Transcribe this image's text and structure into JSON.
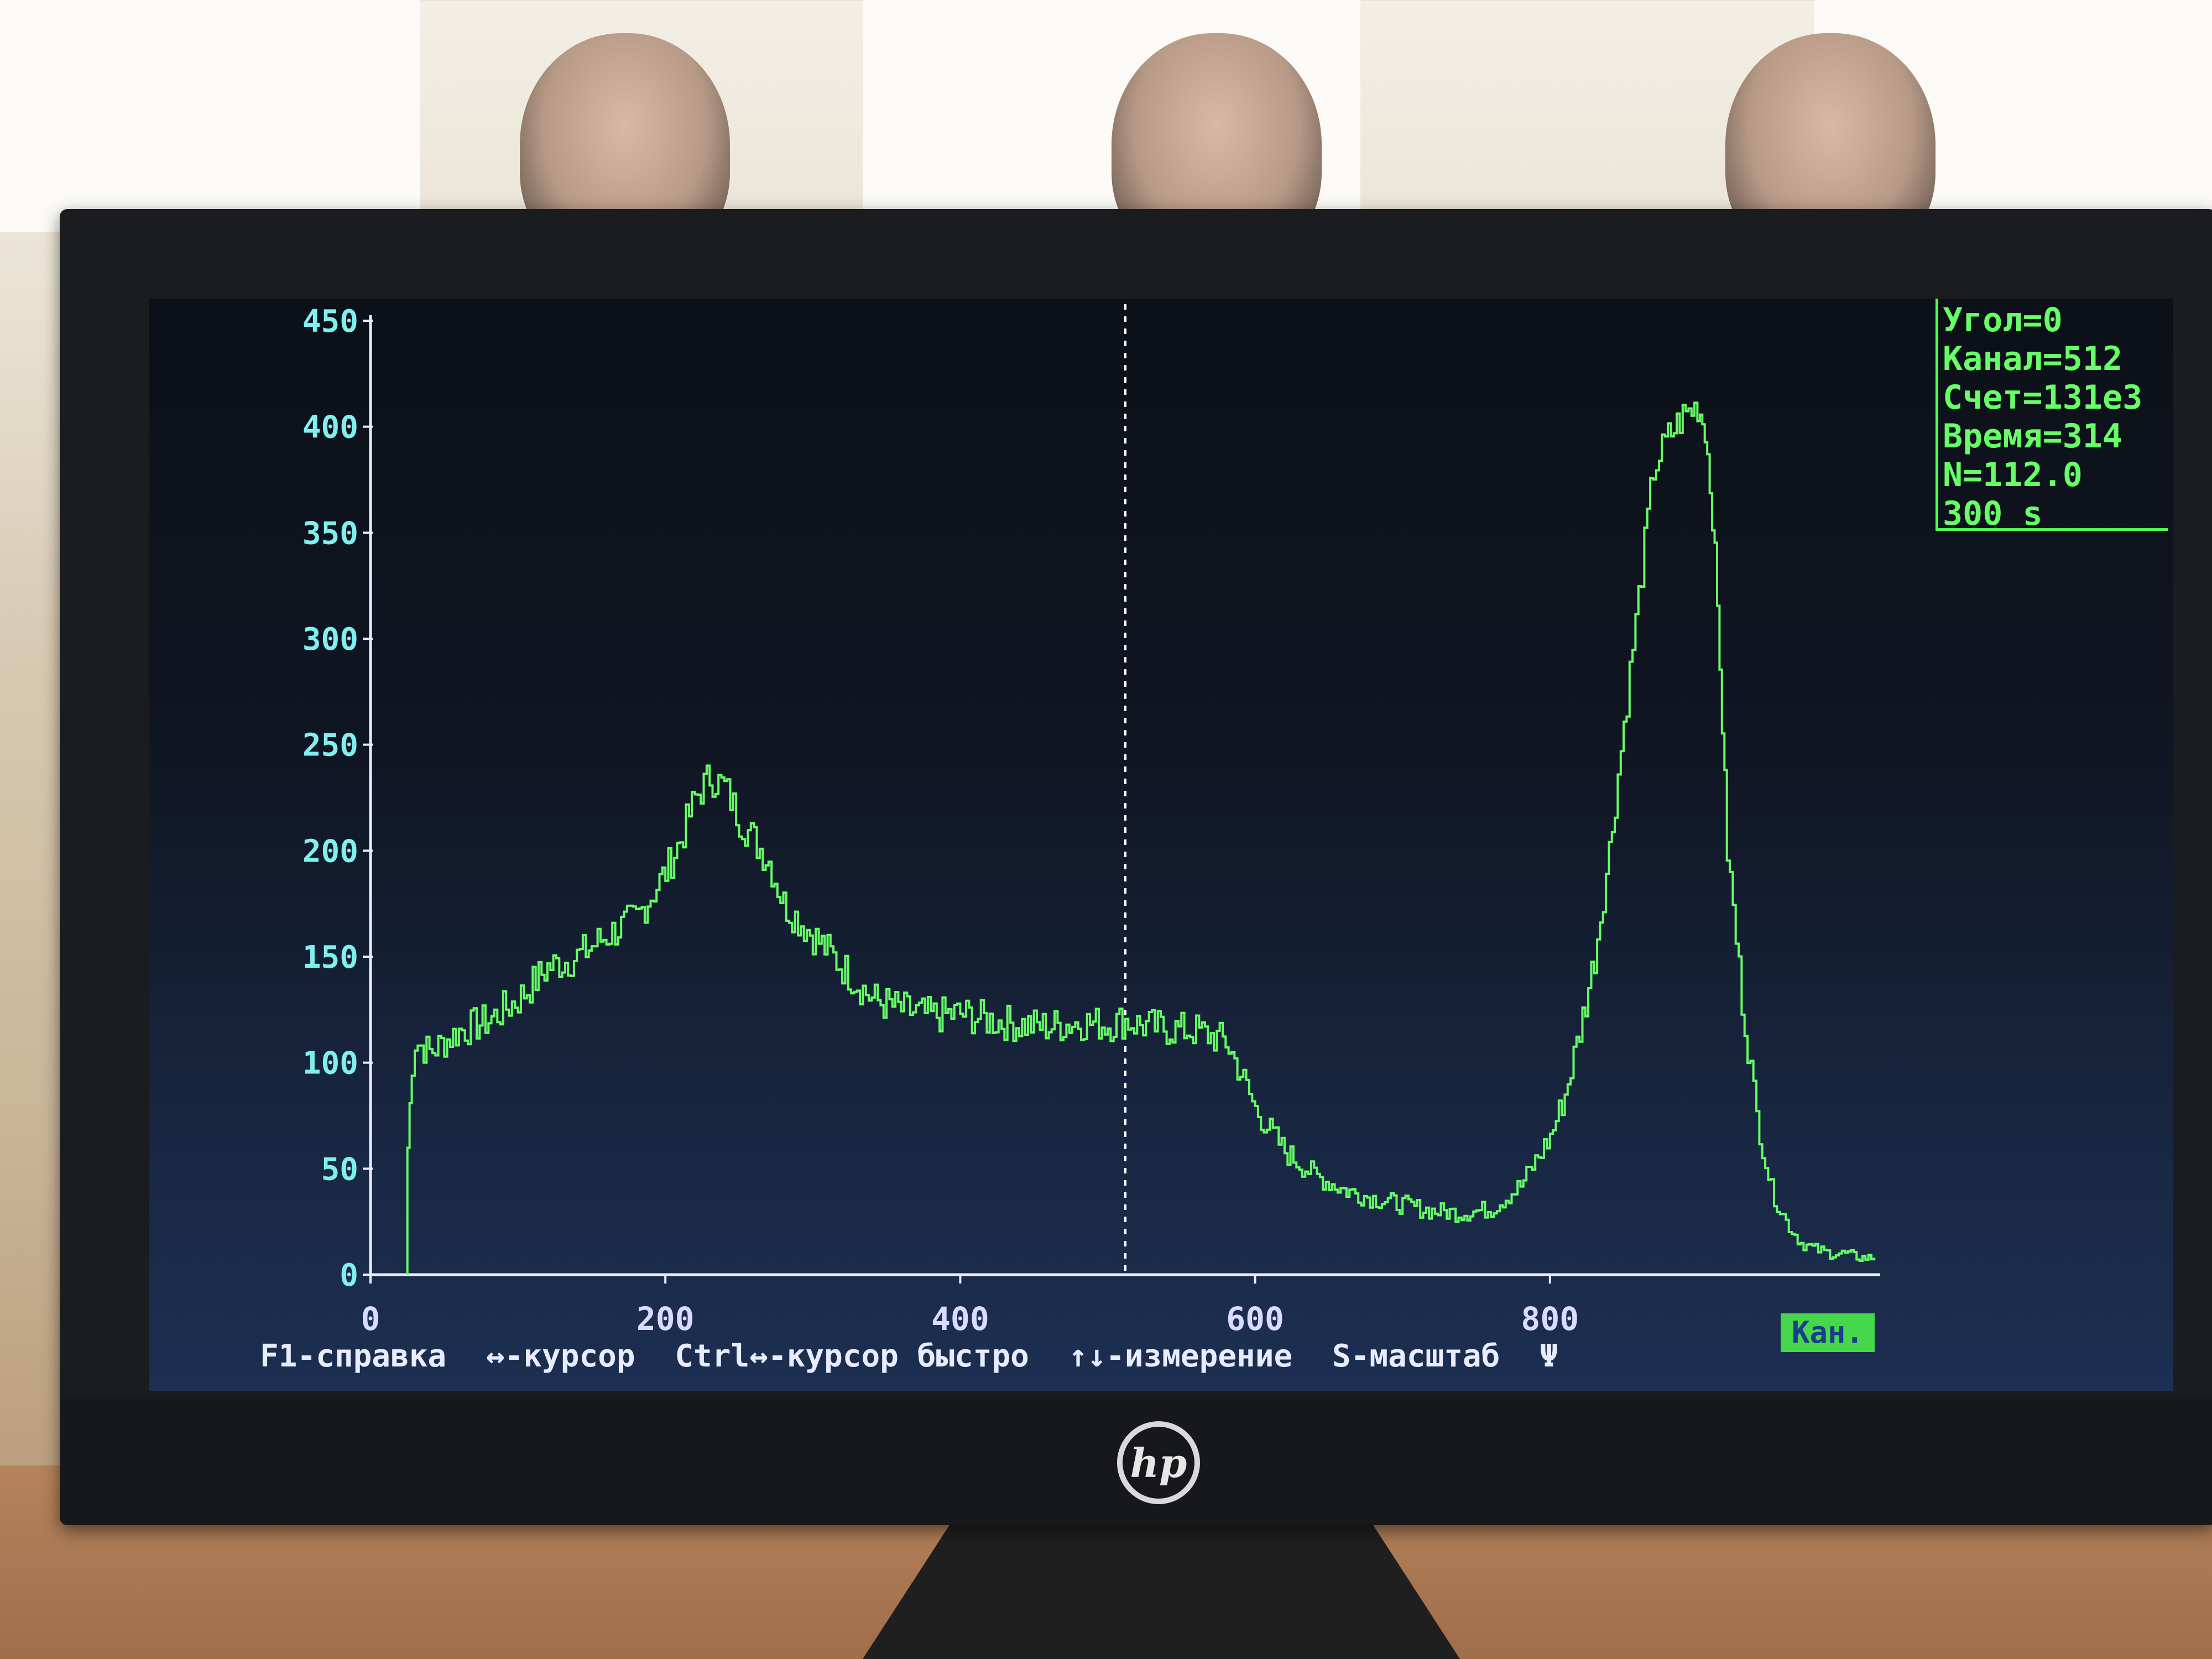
{
  "status": {
    "angle": "Угол=0",
    "channel": "Канал=512",
    "count": "Счет=131e3",
    "time": "Время=314",
    "n": "N=112.0",
    "duration": "300 s"
  },
  "help": {
    "f1": "F1-справка",
    "cursor": "↔-курсор",
    "cursor_fast": "Ctrl↔-курсор быстро",
    "measure": "↑↓-измерение",
    "scale": "S-масштаб",
    "symbol": "Ψ"
  },
  "unit_badge": "Кан.",
  "colors": {
    "trace": "#66ff66",
    "axis": "#e8ecff",
    "y_ticks": "#7ff0ee",
    "status": "#66ff66"
  },
  "brand": "hp",
  "chart_data": {
    "type": "line",
    "xlabel": "",
    "ylabel": "",
    "xlim": [
      0,
      1024
    ],
    "ylim": [
      0,
      450
    ],
    "x_ticks": [
      0,
      200,
      400,
      600,
      800
    ],
    "y_ticks": [
      0,
      50,
      100,
      150,
      200,
      250,
      300,
      350,
      400,
      450
    ],
    "cursor_x": 512,
    "series": [
      {
        "x": [
          25,
          25,
          28,
          30,
          40,
          60,
          80,
          100,
          120,
          140,
          160,
          180,
          200,
          210,
          220,
          230,
          240,
          250,
          260,
          270,
          280,
          300,
          320,
          340,
          360,
          380,
          400,
          420,
          440,
          460,
          480,
          500,
          512,
          520,
          540,
          560,
          580,
          590,
          600,
          620,
          640,
          660,
          680,
          700,
          720,
          740,
          760,
          780,
          800,
          810,
          820,
          830,
          840,
          850,
          860,
          870,
          880,
          890,
          900,
          905,
          910,
          915,
          920,
          930,
          940,
          950,
          960,
          970,
          980,
          990,
          1000,
          1010,
          1020
        ],
        "y": [
          0,
          60,
          100,
          110,
          105,
          115,
          120,
          130,
          145,
          150,
          160,
          168,
          190,
          205,
          225,
          235,
          230,
          215,
          205,
          195,
          175,
          160,
          145,
          130,
          125,
          122,
          123,
          120,
          118,
          117,
          119,
          118,
          120,
          118,
          116,
          115,
          110,
          95,
          78,
          58,
          47,
          40,
          36,
          33,
          30,
          29,
          31,
          42,
          65,
          85,
          115,
          150,
          200,
          260,
          320,
          380,
          395,
          405,
          410,
          400,
          360,
          290,
          200,
          130,
          75,
          40,
          25,
          15,
          12,
          10,
          10,
          8,
          8
        ]
      }
    ]
  }
}
